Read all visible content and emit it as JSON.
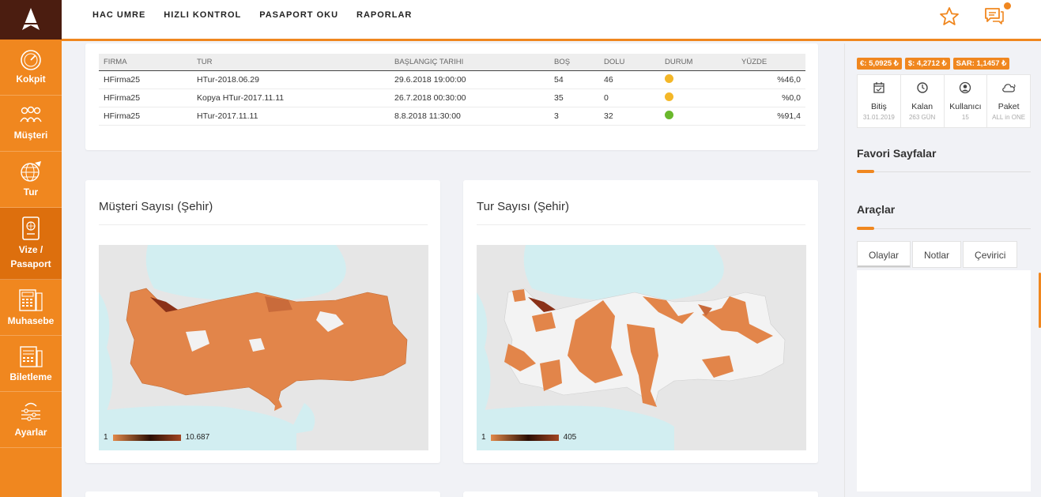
{
  "app": {
    "logo": "logo-icon",
    "accent": "#f0871f",
    "brand_dark": "#4b1d10"
  },
  "sidebar": {
    "items": [
      {
        "label": "Kokpit",
        "icon": "gauge-icon"
      },
      {
        "label": "Müşteri",
        "icon": "users-icon"
      },
      {
        "label": "Tur",
        "icon": "globe-plane-icon"
      },
      {
        "label": "Vize / Pasaport",
        "icon": "passport-icon"
      },
      {
        "label": "Muhasebe",
        "icon": "calculator-icon"
      },
      {
        "label": "Biletleme",
        "icon": "ticket-icon"
      },
      {
        "label": "Ayarlar",
        "icon": "settings-icon"
      }
    ]
  },
  "topnav": [
    "HAC UMRE",
    "HIZLI KONTROL",
    "PASAPORT OKU",
    "RAPORLAR"
  ],
  "table": {
    "headers": [
      "FIRMA",
      "TUR",
      "BAŞLANGIÇ TARIHI",
      "BOŞ",
      "DOLU",
      "DURUM",
      "YÜZDE"
    ],
    "rows": [
      {
        "firma": "HFirma25",
        "tur": "HTur-2018.06.29",
        "tarih": "29.6.2018 19:00:00",
        "bos": "54",
        "dolu": "46",
        "durum_color": "#f4b728",
        "yuzde": "%46,0"
      },
      {
        "firma": "HFirma25",
        "tur": "Kopya HTur-2017.11.11",
        "tarih": "26.7.2018 00:30:00",
        "bos": "35",
        "dolu": "0",
        "durum_color": "#f4b728",
        "yuzde": "%0,0"
      },
      {
        "firma": "HFirma25",
        "tur": "HTur-2017.11.11",
        "tarih": "8.8.2018 11:30:00",
        "bos": "3",
        "dolu": "32",
        "durum_color": "#6ab82c",
        "yuzde": "%91,4"
      }
    ]
  },
  "maps": [
    {
      "title": "Müşteri Sayısı (Şehir)",
      "legend_min": "1",
      "legend_max": "10.687"
    },
    {
      "title": "Tur Sayısı (Şehir)",
      "legend_min": "1",
      "legend_max": "405"
    }
  ],
  "rates": [
    "€: 5,0925 ₺",
    "$: 4,2712 ₺",
    "SAR: 1,1457 ₺"
  ],
  "stats": [
    {
      "label": "Bitiş",
      "sub": "31.01.2019",
      "icon": "calendar-check-icon"
    },
    {
      "label": "Kalan",
      "sub": "263 GÜN",
      "icon": "clock-icon"
    },
    {
      "label": "Kullanıcı",
      "sub": "15",
      "icon": "user-circle-icon"
    },
    {
      "label": "Paket",
      "sub": "ALL in ONE",
      "icon": "cloud-icon"
    }
  ],
  "favorites_title": "Favori Sayfalar",
  "tools_title": "Araçlar",
  "tool_tabs": [
    "Olaylar",
    "Notlar",
    "Çevirici"
  ]
}
